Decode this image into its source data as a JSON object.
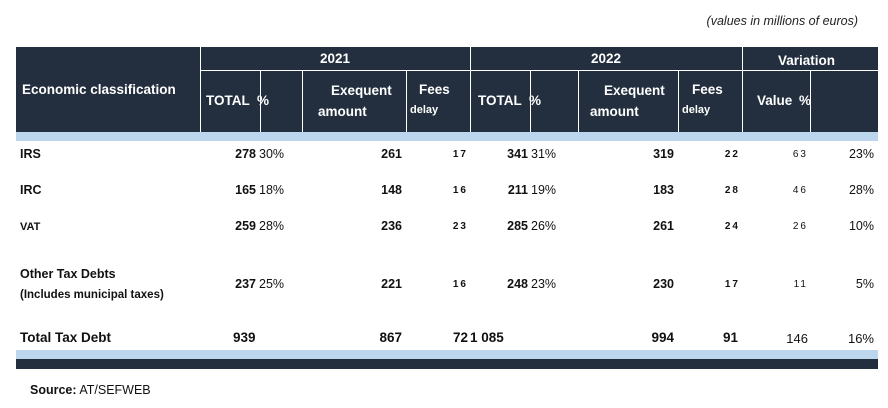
{
  "unit_note": "(values in millions of euros)",
  "header": {
    "classification": "Economic classification",
    "year_2021": "2021",
    "year_2022": "2022",
    "variation": "Variation",
    "total_label": "TOTAL",
    "pct_label": "%",
    "exequent_line1": "Exequent",
    "exequent_line2": "amount",
    "fees_line1": "Fees",
    "fees_line2": "delay",
    "value_label": "Value",
    "value_pct_label": "%"
  },
  "rows": [
    {
      "label": "IRS",
      "total_2021": "278",
      "pct_2021": "30%",
      "exequent_2021": "261",
      "fees_2021": "17",
      "total_2022": "341",
      "pct_2022": "31%",
      "exequent_2022": "319",
      "fees_2022": "22",
      "var_value": "63",
      "var_pct": "23%"
    },
    {
      "label": "IRC",
      "total_2021": "165",
      "pct_2021": "18%",
      "exequent_2021": "148",
      "fees_2021": "16",
      "total_2022": "211",
      "pct_2022": "19%",
      "exequent_2022": "183",
      "fees_2022": "28",
      "var_value": "46",
      "var_pct": "28%"
    },
    {
      "label": "VAT",
      "total_2021": "259",
      "pct_2021": "28%",
      "exequent_2021": "236",
      "fees_2021": "23",
      "total_2022": "285",
      "pct_2022": "26%",
      "exequent_2022": "261",
      "fees_2022": "24",
      "var_value": "26",
      "var_pct": "10%"
    },
    {
      "label": "Other Tax Debts",
      "label_line2": "(Includes municipal taxes)",
      "total_2021": "237",
      "pct_2021": "25%",
      "exequent_2021": "221",
      "fees_2021": "16",
      "total_2022": "248",
      "pct_2022": "23%",
      "exequent_2022": "230",
      "fees_2022": "17",
      "var_value": "11",
      "var_pct": "5%"
    }
  ],
  "total_row": {
    "label": "Total Tax Debt",
    "total_2021": "939",
    "exequent_2021": "867",
    "fees_2021": "72",
    "total_2022": "1 085",
    "exequent_2022": "994",
    "fees_2022": "91",
    "var_value": "146",
    "var_pct": "16%"
  },
  "source": {
    "label": "Source:",
    "value": "AT/SEFWEB"
  },
  "colors": {
    "header_bg": "#232f3e",
    "band_blue": "#bcd6ee"
  }
}
